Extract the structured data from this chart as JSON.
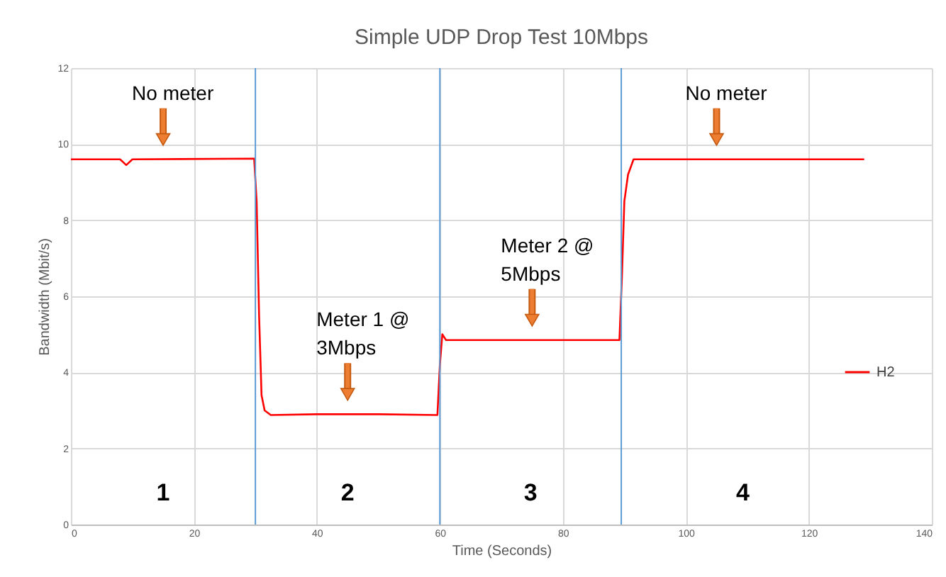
{
  "chart_data": {
    "type": "line",
    "title": "Simple UDP Drop Test 10Mbps",
    "xlabel": "Time (Seconds)",
    "ylabel": "Bandwidth (Mbit/s)",
    "series": [
      {
        "name": "H2",
        "color": "#ff0000",
        "x": [
          0,
          8,
          9,
          10,
          29.8,
          30.2,
          30.6,
          31,
          31.5,
          32.5,
          40,
          50,
          59.6,
          60,
          60.4,
          61,
          70,
          80,
          89.2,
          89.6,
          90,
          90.6,
          91.5,
          100,
          110,
          120,
          129
        ],
        "values": [
          9.6,
          9.6,
          9.45,
          9.6,
          9.62,
          8.5,
          5.5,
          3.4,
          3.0,
          2.88,
          2.9,
          2.9,
          2.88,
          4.2,
          5.0,
          4.85,
          4.85,
          4.85,
          4.85,
          6.5,
          8.5,
          9.2,
          9.6,
          9.6,
          9.6,
          9.6,
          9.6
        ]
      }
    ],
    "xlim": [
      0,
      140
    ],
    "xticks": [
      0,
      20,
      40,
      60,
      80,
      100,
      120,
      140
    ],
    "ylim": [
      0,
      12
    ],
    "yticks": [
      0,
      2,
      4,
      6,
      8,
      10,
      12
    ],
    "grid": true,
    "legend": "right",
    "marker": "none",
    "line_style": "solid",
    "ref_lines": [
      {
        "axis": "x",
        "value": 30,
        "color": "#5b9bd5"
      },
      {
        "axis": "x",
        "value": 60,
        "color": "#5b9bd5"
      },
      {
        "axis": "x",
        "value": 89.5,
        "color": "#5b9bd5"
      }
    ],
    "annotations": [
      {
        "text": "No meter",
        "x": 15,
        "y": 9.6
      },
      {
        "text": "Meter 1 @\n3Mbps",
        "x": 45,
        "y": 2.9
      },
      {
        "text": "Meter 2 @\n5Mbps",
        "x": 75,
        "y": 4.85
      },
      {
        "text": "No meter",
        "x": 105,
        "y": 9.6
      },
      "1",
      "2",
      "3",
      "4"
    ]
  }
}
